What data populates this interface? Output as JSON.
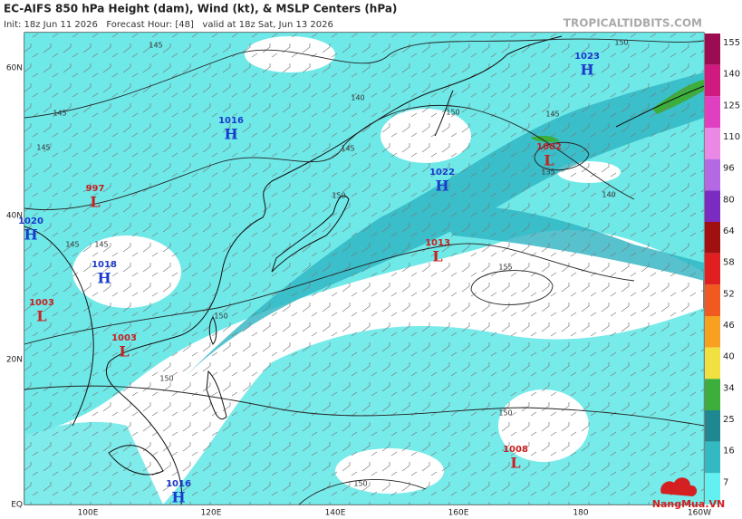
{
  "header": {
    "title": "EC-AIFS 850 hPa Height (dam), Wind (kt), & MSLP Centers (hPa)",
    "subtitle": "Init: 18z Jun 11 2026   Forecast Hour: [48]   valid at 18z Sat, Jun 13 2026",
    "site": "TROPICALTIDBITS.COM"
  },
  "map": {
    "lat_labels": [
      "60N",
      "40N",
      "20N",
      "EQ"
    ],
    "lon_labels": [
      "100E",
      "120E",
      "140E",
      "160E",
      "180",
      "160W"
    ],
    "centers": [
      {
        "type": "H",
        "pressure": "1023"
      },
      {
        "type": "L",
        "pressure": "1002"
      },
      {
        "type": "H",
        "pressure": "1016"
      },
      {
        "type": "H",
        "pressure": "1022"
      },
      {
        "type": "L",
        "pressure": "997"
      },
      {
        "type": "H",
        "pressure": "1020"
      },
      {
        "type": "L",
        "pressure": "1013"
      },
      {
        "type": "H",
        "pressure": "1018"
      },
      {
        "type": "L",
        "pressure": "1003"
      },
      {
        "type": "L",
        "pressure": "1003"
      },
      {
        "type": "L",
        "pressure": "1008"
      },
      {
        "type": "H",
        "pressure": "1016"
      }
    ],
    "contour_labels": [
      145,
      150,
      140,
      150,
      145,
      135,
      140,
      145,
      145,
      145,
      150,
      145,
      145,
      150,
      155,
      150,
      150,
      150
    ]
  },
  "colorbar": {
    "labels": [
      155,
      140,
      125,
      110,
      96,
      80,
      64,
      58,
      52,
      46,
      40,
      34,
      25,
      16,
      7
    ],
    "colors": [
      "#9c0c52",
      "#d01a80",
      "#e040c0",
      "#ea88e6",
      "#b468e4",
      "#7a2cc0",
      "#a01010",
      "#e02020",
      "#f05a20",
      "#f8a020",
      "#f0e040",
      "#3cae3c",
      "#1f8790",
      "#33b9c2",
      "#62f0f0"
    ]
  },
  "watermark": "NangMua.VN"
}
